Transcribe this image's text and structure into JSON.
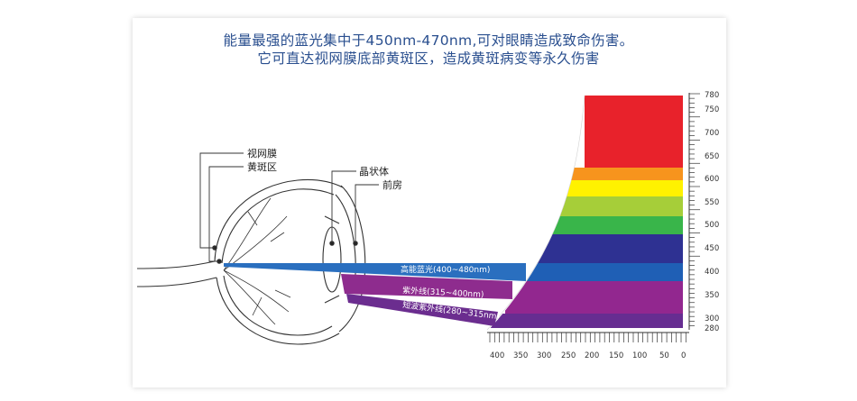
{
  "heading": {
    "line1": "能量最强的蓝光集中于450nm-470nm,可对眼睛造成致命伤害。",
    "line2": "它可直达视网膜底部黄斑区，造成黄斑病变等永久伤害"
  },
  "eye_labels": {
    "retina": "视网膜",
    "macula": "黄斑区",
    "lens": "晶状体",
    "anterior_chamber": "前房"
  },
  "rays": {
    "blue": "高能蓝光(400~480nm)",
    "uv": "紫外线(315~400nm)",
    "short_uv": "短波紫外线(280~315nm)"
  },
  "right_axis_ticks": [
    "780",
    "750",
    "700",
    "650",
    "600",
    "550",
    "500",
    "450",
    "400",
    "350",
    "300",
    "280"
  ],
  "bottom_axis_ticks": [
    "400",
    "350",
    "300",
    "250",
    "200",
    "150",
    "100",
    "50",
    "0"
  ],
  "colors": {
    "red": "#e8222b",
    "orange": "#f7941d",
    "yellow": "#fff200",
    "yellow_green": "#a6ce39",
    "green": "#39b54a",
    "blue": "#1f5fb5",
    "indigo": "#2e3192",
    "violet": "#92278f",
    "deep_violet": "#662d91",
    "title": "#2a4f8f"
  }
}
